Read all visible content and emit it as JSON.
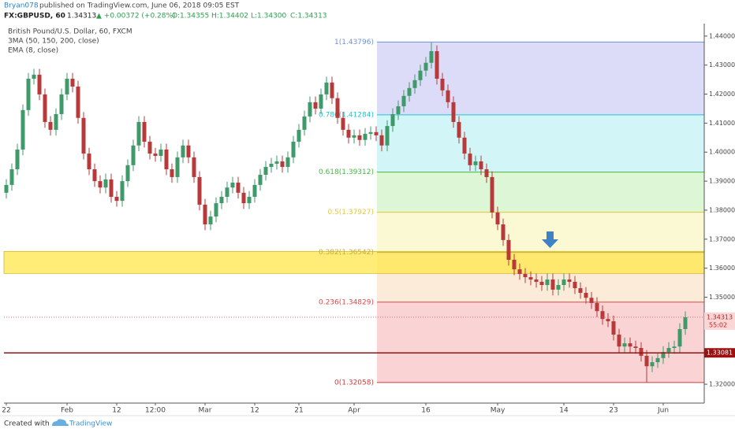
{
  "header": {
    "author": "Bryan078",
    "published": "published on TradingView.com, June 06, 2018 09:05 EST",
    "symbol": "FX:GBPUSD, 60",
    "last": "1.34313",
    "change": "▲ +0.00372 (+0.28%)",
    "open": "O:1.34355",
    "high": "H:1.34402",
    "low": "L:1.34300",
    "close": "C:1.34313"
  },
  "chart_data": {
    "type": "candlestick",
    "title": "British Pound/U.S. Dollar, 60, FXCM",
    "indicators": [
      "3MA (50, 150, 200, close)",
      "EMA (8, close)"
    ],
    "up_color": "#3f9a6a",
    "down_color": "#b8393a",
    "categories": [
      "22",
      null,
      null,
      null,
      null,
      null,
      null,
      null,
      null,
      null,
      null,
      "Feb",
      null,
      null,
      null,
      null,
      null,
      null,
      null,
      null,
      "12",
      null,
      null,
      null,
      null,
      null,
      null,
      "12:00",
      null,
      null,
      null,
      null,
      null,
      null,
      null,
      null,
      "Mar",
      null,
      null,
      null,
      null,
      null,
      null,
      null,
      null,
      "12",
      null,
      null,
      null,
      null,
      null,
      null,
      null,
      "21",
      null,
      null,
      null,
      null,
      null,
      null,
      null,
      null,
      null,
      "Apr",
      null,
      null,
      null,
      null,
      null,
      null,
      null,
      null,
      null,
      null,
      null,
      null,
      "16",
      null,
      null,
      null,
      null,
      null,
      null,
      null,
      null,
      null,
      null,
      null,
      null,
      "May",
      null,
      null,
      null,
      null,
      null,
      null,
      null,
      null,
      null,
      null,
      null,
      "14",
      null,
      null,
      null,
      null,
      null,
      null,
      null,
      null,
      "23",
      null,
      null,
      null,
      null,
      null,
      null,
      null,
      null,
      "Jun",
      null,
      null,
      null,
      null
    ],
    "open": [
      1.386,
      1.3887,
      1.3941,
      1.4009,
      1.4145,
      1.4253,
      1.4267,
      1.4199,
      1.4104,
      1.4077,
      1.4131,
      1.4199,
      1.4253,
      1.4226,
      1.4118,
      1.3995,
      1.3941,
      1.39,
      1.3878,
      1.3906,
      1.3846,
      1.3832,
      1.39,
      1.3955,
      1.4023,
      1.4104,
      1.4036,
      1.3995,
      1.3987,
      1.4009,
      1.3941,
      1.3914,
      1.3982,
      1.4023,
      1.3982,
      1.3914,
      1.3819,
      1.3751,
      1.3778,
      1.3824,
      1.3846,
      1.3878,
      1.3895,
      1.386,
      1.3824,
      1.3846,
      1.3887,
      1.3922,
      1.3949,
      1.396,
      1.3968,
      1.3949,
      1.3982,
      1.4036,
      1.4077,
      1.4123,
      1.4172,
      1.415,
      1.4199,
      1.424,
      1.4186,
      1.4118,
      1.4077,
      1.405,
      1.4058,
      1.4042,
      1.4063,
      1.4069,
      1.4058,
      1.4023,
      1.409,
      1.4131,
      1.4158,
      1.4194,
      1.4221,
      1.4248,
      1.4281,
      1.4308,
      1.4348,
      1.4253,
      1.4213,
      1.4172,
      1.4104,
      1.405,
      1.3995,
      1.3955,
      1.3968,
      1.3941,
      1.3914,
      1.3792,
      1.3751,
      1.3697,
      1.3629,
      1.3596,
      1.358,
      1.3569,
      1.3561,
      1.3553,
      1.3542,
      1.3561,
      1.3526,
      1.3542,
      1.3561,
      1.3553,
      1.3531,
      1.3515,
      1.3498,
      1.348,
      1.3452,
      1.3425,
      1.3417,
      1.3371,
      1.333,
      1.3341,
      1.333,
      1.3325,
      1.3298,
      1.3262,
      1.3276,
      1.329,
      1.3311,
      1.3325,
      1.333,
      1.339
    ],
    "high": [
      1.3907,
      1.3961,
      1.4029,
      1.4165,
      1.4273,
      1.4287,
      1.4287,
      1.4219,
      1.4124,
      1.4151,
      1.4219,
      1.4273,
      1.4273,
      1.4246,
      1.4138,
      1.4015,
      1.3961,
      1.392,
      1.3926,
      1.3926,
      1.3866,
      1.392,
      1.3975,
      1.4043,
      1.4124,
      1.4124,
      1.4056,
      1.4015,
      1.4029,
      1.4029,
      1.3961,
      1.4002,
      1.4043,
      1.4043,
      1.4002,
      1.3934,
      1.3839,
      1.3798,
      1.3844,
      1.3866,
      1.3898,
      1.3915,
      1.3915,
      1.388,
      1.3866,
      1.3907,
      1.3942,
      1.3969,
      1.398,
      1.3988,
      1.3988,
      1.4002,
      1.4056,
      1.4097,
      1.4143,
      1.4192,
      1.4192,
      1.4219,
      1.426,
      1.426,
      1.4206,
      1.4138,
      1.4097,
      1.4078,
      1.4078,
      1.4083,
      1.4089,
      1.4089,
      1.4078,
      1.411,
      1.4151,
      1.4178,
      1.4214,
      1.4241,
      1.4268,
      1.4301,
      1.4328,
      1.4378,
      1.4368,
      1.4273,
      1.4233,
      1.4192,
      1.4124,
      1.407,
      1.4015,
      1.3988,
      1.3988,
      1.3961,
      1.3934,
      1.3812,
      1.3771,
      1.3717,
      1.3649,
      1.3616,
      1.36,
      1.3589,
      1.3581,
      1.3573,
      1.3581,
      1.3581,
      1.3562,
      1.3581,
      1.3581,
      1.3573,
      1.3551,
      1.3535,
      1.3518,
      1.35,
      1.3472,
      1.3445,
      1.3437,
      1.3391,
      1.3361,
      1.3361,
      1.335,
      1.3345,
      1.3318,
      1.3296,
      1.331,
      1.3331,
      1.3345,
      1.335,
      1.341,
      1.3451
    ],
    "low": [
      1.384,
      1.3867,
      1.3921,
      1.3989,
      1.4125,
      1.4233,
      1.4179,
      1.4084,
      1.4057,
      1.4057,
      1.4111,
      1.4179,
      1.4206,
      1.4098,
      1.3975,
      1.3921,
      1.388,
      1.3858,
      1.3858,
      1.3826,
      1.3812,
      1.3812,
      1.388,
      1.3935,
      1.4003,
      1.4016,
      1.3975,
      1.3967,
      1.3967,
      1.3921,
      1.3894,
      1.3894,
      1.3962,
      1.3962,
      1.3894,
      1.3799,
      1.3731,
      1.3731,
      1.3758,
      1.3804,
      1.3826,
      1.3858,
      1.384,
      1.3804,
      1.3804,
      1.3826,
      1.3867,
      1.3902,
      1.3929,
      1.394,
      1.3929,
      1.3929,
      1.3962,
      1.4016,
      1.4057,
      1.4103,
      1.413,
      1.413,
      1.4179,
      1.4166,
      1.4098,
      1.4057,
      1.403,
      1.403,
      1.4022,
      1.4022,
      1.4043,
      1.4038,
      1.4003,
      1.4003,
      1.407,
      1.4111,
      1.4138,
      1.4174,
      1.4201,
      1.4228,
      1.4261,
      1.4288,
      1.4233,
      1.4193,
      1.4152,
      1.4084,
      1.403,
      1.3975,
      1.3935,
      1.3935,
      1.3921,
      1.3894,
      1.3772,
      1.3731,
      1.3677,
      1.3609,
      1.3576,
      1.356,
      1.3549,
      1.3541,
      1.3533,
      1.3522,
      1.3522,
      1.3506,
      1.3506,
      1.3522,
      1.3533,
      1.3511,
      1.3495,
      1.3478,
      1.346,
      1.3432,
      1.3405,
      1.3397,
      1.3351,
      1.331,
      1.331,
      1.331,
      1.3305,
      1.3278,
      1.3206,
      1.3242,
      1.3256,
      1.327,
      1.3291,
      1.3305,
      1.331,
      1.337
    ],
    "close": [
      1.3887,
      1.3941,
      1.4009,
      1.4145,
      1.4253,
      1.4267,
      1.4199,
      1.4104,
      1.4077,
      1.4131,
      1.4199,
      1.4253,
      1.4226,
      1.4118,
      1.3995,
      1.3941,
      1.39,
      1.3878,
      1.3906,
      1.3846,
      1.3832,
      1.39,
      1.3955,
      1.4023,
      1.4104,
      1.4036,
      1.3995,
      1.3987,
      1.4009,
      1.3941,
      1.3914,
      1.3982,
      1.4023,
      1.3982,
      1.3914,
      1.3819,
      1.3751,
      1.3778,
      1.3824,
      1.3846,
      1.3878,
      1.3895,
      1.386,
      1.3824,
      1.3846,
      1.3887,
      1.3922,
      1.3949,
      1.396,
      1.3968,
      1.3949,
      1.3982,
      1.4036,
      1.4077,
      1.4123,
      1.4172,
      1.415,
      1.4199,
      1.424,
      1.4186,
      1.4118,
      1.4077,
      1.405,
      1.4058,
      1.4042,
      1.4063,
      1.4069,
      1.4058,
      1.4023,
      1.409,
      1.4131,
      1.4158,
      1.4194,
      1.4221,
      1.4248,
      1.4281,
      1.4308,
      1.4348,
      1.4253,
      1.4213,
      1.4172,
      1.4104,
      1.405,
      1.3995,
      1.3955,
      1.3968,
      1.3941,
      1.3914,
      1.3792,
      1.3751,
      1.3697,
      1.3629,
      1.3596,
      1.358,
      1.3569,
      1.3561,
      1.3553,
      1.3542,
      1.3561,
      1.3526,
      1.3542,
      1.3561,
      1.3553,
      1.3531,
      1.3515,
      1.3498,
      1.348,
      1.3452,
      1.3425,
      1.3417,
      1.3371,
      1.333,
      1.3341,
      1.333,
      1.3325,
      1.3298,
      1.3262,
      1.3276,
      1.329,
      1.3311,
      1.3325,
      1.333,
      1.339,
      1.3431
    ],
    "ylim": [
      1.3135,
      1.4443
    ],
    "yticks": [
      {
        "value": 1.32,
        "label": "1.32000"
      },
      {
        "value": 1.33,
        "label": "1.33000"
      },
      {
        "value": 1.34,
        "label": "1.34000"
      },
      {
        "value": 1.35,
        "label": "1.35000"
      },
      {
        "value": 1.36,
        "label": "1.36000"
      },
      {
        "value": 1.37,
        "label": "1.37000"
      },
      {
        "value": 1.38,
        "label": "1.38000"
      },
      {
        "value": 1.39,
        "label": "1.39000"
      },
      {
        "value": 1.4,
        "label": "1.40000"
      },
      {
        "value": 1.41,
        "label": "1.41000"
      },
      {
        "value": 1.42,
        "label": "1.42000"
      },
      {
        "value": 1.43,
        "label": "1.43000"
      },
      {
        "value": 1.44,
        "label": "1.44000"
      }
    ],
    "grid": false,
    "fib_levels": [
      {
        "label": "1(1.43796)",
        "value": 1.43796,
        "color": "#6f8fdc",
        "band_color": "#dcdcf8"
      },
      {
        "label": "0.786(1.41284)",
        "value": 1.41284,
        "color": "#25c4d0",
        "band_color": "#d2f6f8"
      },
      {
        "label": "0.618(1.39312)",
        "value": 1.39312,
        "color": "#43b843",
        "band_color": "#dcf6d6"
      },
      {
        "label": "0.5(1.37927)",
        "value": 1.37927,
        "color": "#e3c83a",
        "band_color": "#fbf9d4"
      },
      {
        "label": "0.382(1.36542)",
        "value": 1.36542,
        "color": "#c9aa44",
        "band_color": "#fdebd9"
      },
      {
        "label": "0.236(1.34829)",
        "value": 1.34829,
        "color": "#e04848",
        "band_color": "#fad4d4"
      },
      {
        "label": "0(1.32058)",
        "value": 1.32058,
        "color": "#cc3c3c"
      }
    ],
    "zone": {
      "from": 1.3582,
      "to": 1.3658,
      "color": "#ffe74a"
    },
    "support": {
      "value": 1.33081,
      "label": "1.33081",
      "color": "#9b1111"
    },
    "price_line": {
      "value": 1.34313,
      "label": "1.34313",
      "countdown": "55:02",
      "color": "#e26a6a"
    }
  },
  "footer": {
    "text": "Created with",
    "brand": "TradingView"
  }
}
